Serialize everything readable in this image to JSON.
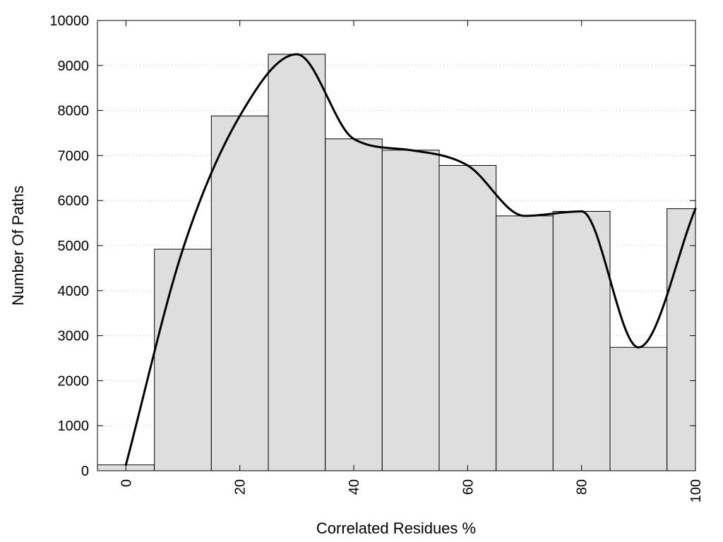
{
  "chart_data": {
    "type": "bar",
    "title": "",
    "xlabel": "Correlated Residues %",
    "ylabel": "Number Of Paths",
    "xlim": [
      -5,
      100
    ],
    "ylim": [
      0,
      10000
    ],
    "grid": {
      "y": true,
      "x": false,
      "style": "dotted"
    },
    "bar_width": 10,
    "x": [
      0,
      10,
      20,
      30,
      40,
      50,
      60,
      70,
      80,
      90,
      100
    ],
    "values": [
      130,
      4920,
      7880,
      9250,
      7370,
      7120,
      6780,
      5660,
      5760,
      2740,
      5820
    ],
    "x_ticks": [
      0,
      20,
      40,
      60,
      80,
      100
    ],
    "x_tick_labels": [
      "0",
      "20",
      "40",
      "60",
      "80",
      "100"
    ],
    "y_ticks": [
      0,
      1000,
      2000,
      3000,
      4000,
      5000,
      6000,
      7000,
      8000,
      9000,
      10000
    ],
    "y_tick_labels": [
      "0",
      "1000",
      "2000",
      "3000",
      "4000",
      "5000",
      "6000",
      "7000",
      "8000",
      "9000",
      "10000"
    ],
    "trend_line": {
      "style": "smooth",
      "color": "#000000",
      "points": [
        [
          0,
          130
        ],
        [
          10,
          4920
        ],
        [
          20,
          7880
        ],
        [
          30,
          9250
        ],
        [
          40,
          7370
        ],
        [
          50,
          7120
        ],
        [
          60,
          6780
        ],
        [
          70,
          5660
        ],
        [
          80,
          5760
        ],
        [
          90,
          2740
        ],
        [
          100,
          5820
        ]
      ]
    },
    "colors": {
      "bar_fill": "#dedede",
      "bar_stroke": "#000000",
      "line": "#000000"
    }
  }
}
